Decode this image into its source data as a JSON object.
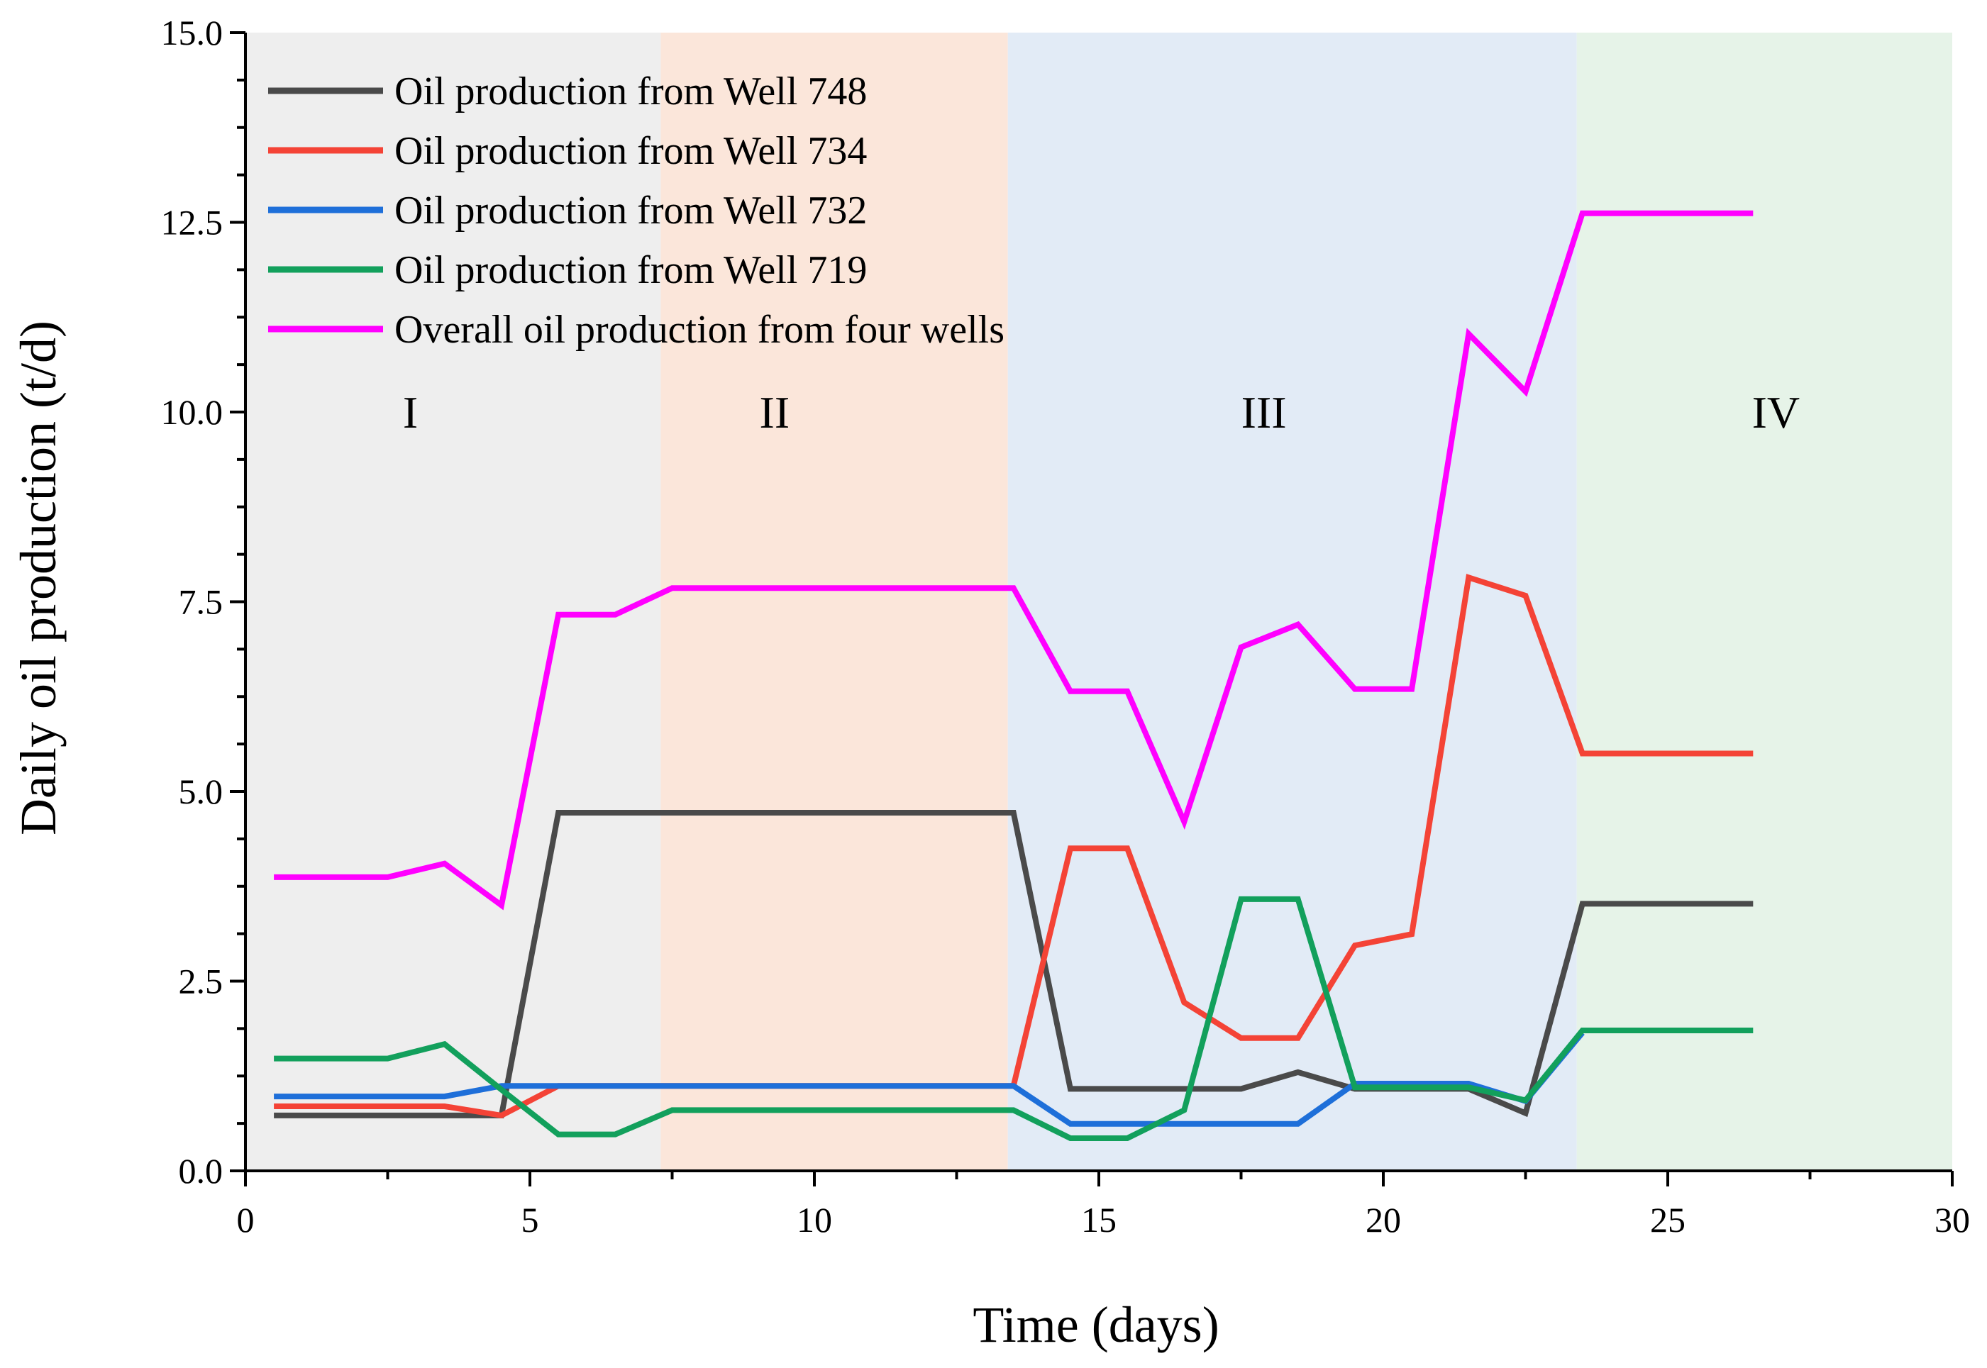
{
  "chart_data": {
    "type": "line",
    "xlabel": "Time (days)",
    "ylabel": "Daily oil production (t/d)",
    "xlim": [
      0,
      30
    ],
    "ylim": [
      0,
      15
    ],
    "xticks": [
      "0",
      "5",
      "10",
      "15",
      "20",
      "25",
      "30"
    ],
    "yticks": [
      "0.0",
      "2.5",
      "5.0",
      "7.5",
      "10.0",
      "12.5",
      "15.0"
    ],
    "grid": false,
    "legend_position": "top-left",
    "stages": [
      {
        "label": "I",
        "x_start": 0,
        "x_end": 7.3,
        "color": "#eeeeee"
      },
      {
        "label": "II",
        "x_start": 7.3,
        "x_end": 13.4,
        "color": "#fbe6da"
      },
      {
        "label": "III",
        "x_start": 13.4,
        "x_end": 23.4,
        "color": "#e2ebf6"
      },
      {
        "label": "IV",
        "x_start": 23.4,
        "x_end": 30,
        "color": "#e6f3e8"
      }
    ],
    "series": [
      {
        "name": "Oil production from Well 748",
        "color": "#4a4a4a",
        "x": [
          0.5,
          2.5,
          3.5,
          4.5,
          5.5,
          6.5,
          7.5,
          13.5,
          14.5,
          15.5,
          16.5,
          17.5,
          18.5,
          19.5,
          20.5,
          21.5,
          22.5,
          23.5,
          26.5
        ],
        "y": [
          0.73,
          0.73,
          0.73,
          0.73,
          4.72,
          4.72,
          4.72,
          4.72,
          1.08,
          1.08,
          1.08,
          1.08,
          1.3,
          1.08,
          1.08,
          1.08,
          0.76,
          3.52,
          3.52
        ]
      },
      {
        "name": "Oil production from Well 734",
        "color": "#f44336",
        "x": [
          0.5,
          2.5,
          3.5,
          4.5,
          5.5,
          6.5,
          7.5,
          13.5,
          14.5,
          15.5,
          16.5,
          17.5,
          18.5,
          19.5,
          20.5,
          21.5,
          22.5,
          23.5,
          26.5
        ],
        "y": [
          0.85,
          0.85,
          0.85,
          0.73,
          1.12,
          1.12,
          1.12,
          1.12,
          4.25,
          4.25,
          2.22,
          1.75,
          1.75,
          2.97,
          3.12,
          7.82,
          7.58,
          5.5,
          5.5
        ]
      },
      {
        "name": "Oil production from Well 732",
        "color": "#1e6fd9",
        "x": [
          0.5,
          2.5,
          3.5,
          4.5,
          5.5,
          6.5,
          7.5,
          13.5,
          14.5,
          15.5,
          16.5,
          17.5,
          18.5,
          19.5,
          20.5,
          21.5,
          22.5,
          23.5
        ],
        "y": [
          0.98,
          0.98,
          0.98,
          1.12,
          1.12,
          1.12,
          1.12,
          1.12,
          0.62,
          0.62,
          0.62,
          0.62,
          0.62,
          1.15,
          1.15,
          1.15,
          0.92,
          1.82
        ]
      },
      {
        "name": "Oil production from Well 719",
        "color": "#12a05c",
        "x": [
          0.5,
          2.5,
          3.5,
          4.5,
          5.5,
          6.5,
          7.5,
          13.5,
          14.5,
          15.5,
          16.5,
          17.5,
          18.5,
          19.5,
          20.5,
          21.5,
          22.5,
          23.5,
          26.5
        ],
        "y": [
          1.48,
          1.48,
          1.67,
          1.07,
          0.48,
          0.48,
          0.8,
          0.8,
          0.43,
          0.43,
          0.8,
          3.58,
          3.58,
          1.1,
          1.1,
          1.1,
          0.93,
          1.85,
          1.85
        ]
      },
      {
        "name": "Overall oil production from four wells",
        "color": "#ff00ff",
        "x": [
          0.5,
          2.5,
          3.5,
          4.5,
          5.5,
          6.5,
          7.5,
          13.5,
          14.5,
          15.5,
          16.5,
          17.5,
          18.5,
          19.5,
          20.5,
          21.5,
          22.5,
          23.5,
          26.5
        ],
        "y": [
          3.87,
          3.87,
          4.05,
          3.5,
          7.33,
          7.33,
          7.68,
          7.68,
          6.32,
          6.32,
          4.6,
          6.9,
          7.2,
          6.35,
          6.35,
          11.03,
          10.27,
          12.62,
          12.62
        ]
      }
    ]
  }
}
